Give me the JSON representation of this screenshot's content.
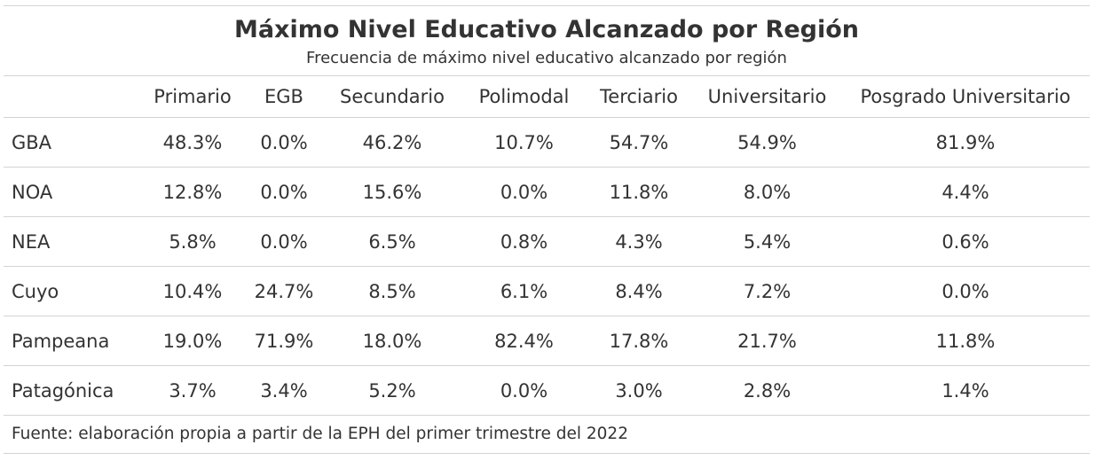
{
  "title": "Máximo Nivel Educativo Alcanzado por Región",
  "subtitle": "Frecuencia de máximo nivel educativo alcanzado por región",
  "source_note": "Fuente: elaboración propia a partir de la EPH del primer trimestre del 2022",
  "chart_data": {
    "type": "table",
    "title": "Máximo Nivel Educativo Alcanzado por Región",
    "subtitle": "Frecuencia de máximo nivel educativo alcanzado por región",
    "columns": [
      "",
      "Primario",
      "EGB",
      "Secundario",
      "Polimodal",
      "Terciario",
      "Universitario",
      "Posgrado Universitario"
    ],
    "rows": [
      {
        "region": "GBA",
        "values": [
          "48.3%",
          "0.0%",
          "46.2%",
          "10.7%",
          "54.7%",
          "54.9%",
          "81.9%"
        ]
      },
      {
        "region": "NOA",
        "values": [
          "12.8%",
          "0.0%",
          "15.6%",
          "0.0%",
          "11.8%",
          "8.0%",
          "4.4%"
        ]
      },
      {
        "region": "NEA",
        "values": [
          "5.8%",
          "0.0%",
          "6.5%",
          "0.8%",
          "4.3%",
          "5.4%",
          "0.6%"
        ]
      },
      {
        "region": "Cuyo",
        "values": [
          "10.4%",
          "24.7%",
          "8.5%",
          "6.1%",
          "8.4%",
          "7.2%",
          "0.0%"
        ]
      },
      {
        "region": "Pampeana",
        "values": [
          "19.0%",
          "71.9%",
          "18.0%",
          "82.4%",
          "17.8%",
          "21.7%",
          "11.8%"
        ]
      },
      {
        "region": "Patagónica",
        "values": [
          "3.7%",
          "3.4%",
          "5.2%",
          "0.0%",
          "3.0%",
          "2.8%",
          "1.4%"
        ]
      }
    ],
    "source": "Fuente: elaboración propia a partir de la EPH del primer trimestre del 2022"
  },
  "colors": {
    "text": "#333333",
    "rule": "#d3d3d3",
    "background": "#ffffff"
  }
}
